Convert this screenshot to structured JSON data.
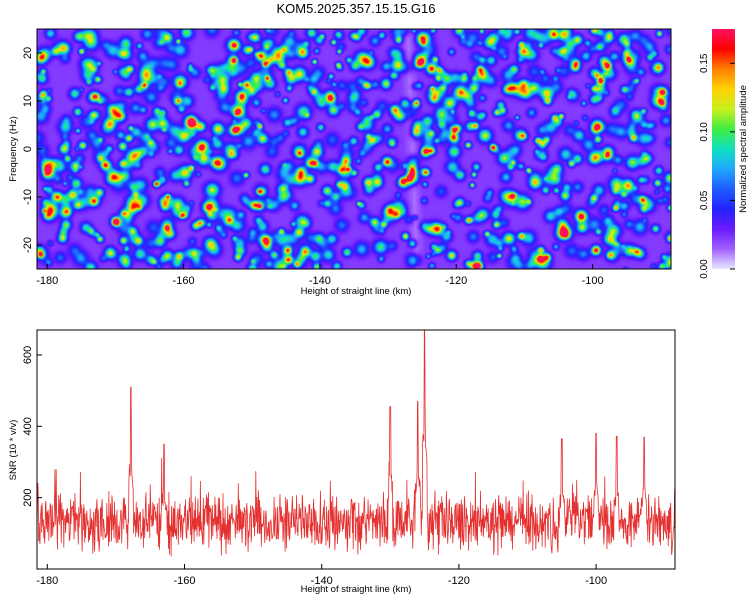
{
  "page": {
    "title": "KOM5.2025.357.15.15.G16"
  },
  "colors": {
    "background_low": "#ffffff",
    "snr_line": "#e53030",
    "colorbar_stops": [
      "#e8e8ff",
      "#a060ff",
      "#6a1bff",
      "#2222ff",
      "#1e5cff",
      "#20a8ff",
      "#10e0c0",
      "#40ee40",
      "#c8f020",
      "#ffd000",
      "#ff8000",
      "#ff0000",
      "#ff1060"
    ]
  },
  "chart_data": [
    {
      "type": "heatmap",
      "title": "KOM5.2025.357.15.15.G16",
      "xlabel": "Height of straight line (km)",
      "ylabel": "Frequency (Hz)",
      "xlim": [
        -181.5,
        -88.5
      ],
      "ylim": [
        -25,
        25
      ],
      "xticks": [
        -180,
        -160,
        -140,
        -120,
        -100
      ],
      "xtick_labels": [
        "-180",
        "-160",
        "-140",
        "-120",
        "-100"
      ],
      "yticks": [
        -20,
        -10,
        0,
        10,
        20
      ],
      "ytick_labels": [
        "-20",
        "-10",
        "0",
        "10",
        "20"
      ],
      "colorbar": {
        "label": "Normalized spectral amplitude",
        "range": [
          0,
          0.175
        ],
        "ticks": [
          0,
          0.05,
          0.1,
          0.15
        ],
        "tick_labels": [
          "0.00",
          "0.05",
          "0.10",
          "0.15"
        ]
      },
      "peak": {
        "x": -126.5,
        "y": -4.5,
        "value": 0.17
      }
    },
    {
      "type": "line",
      "xlabel": "Height of straight line (km)",
      "ylabel": "SNR (10 * v/v)",
      "xlim": [
        -181.5,
        -88.5
      ],
      "ylim": [
        0,
        670
      ],
      "xticks": [
        -180,
        -160,
        -140,
        -120,
        -100
      ],
      "xtick_labels": [
        "-180",
        "-160",
        "-140",
        "-120",
        "-100"
      ],
      "yticks": [
        200,
        400,
        600
      ],
      "ytick_labels": [
        "200",
        "400",
        "600"
      ],
      "baseline_mean": 130,
      "noise_spread": 95,
      "peaks": [
        {
          "x": -167.8,
          "y": 510
        },
        {
          "x": -125.0,
          "y": 670
        },
        {
          "x": -130.0,
          "y": 455
        },
        {
          "x": -126.0,
          "y": 470
        },
        {
          "x": -163.0,
          "y": 350
        },
        {
          "x": -105.0,
          "y": 365
        },
        {
          "x": -100.0,
          "y": 380
        },
        {
          "x": -97.0,
          "y": 372
        },
        {
          "x": -93.0,
          "y": 370
        }
      ]
    }
  ]
}
